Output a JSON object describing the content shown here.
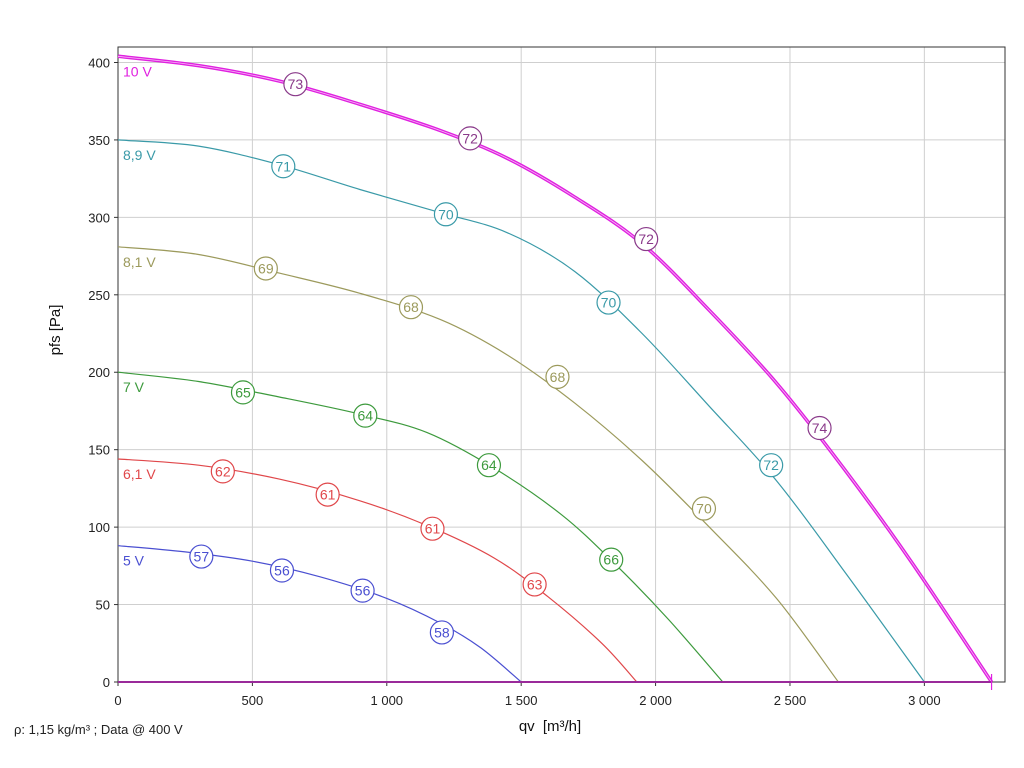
{
  "chart_data": {
    "type": "line",
    "xlabel": "qv",
    "xlabel_unit": "[m³/h]",
    "ylabel": "pfs [Pa]",
    "xlim": [
      0,
      3300
    ],
    "ylim": [
      0,
      410
    ],
    "x_ticks": [
      0,
      500,
      1000,
      1500,
      2000,
      2500,
      3000
    ],
    "x_tick_labels": [
      "0",
      "500",
      "1 000",
      "1 500",
      "2 000",
      "2 500",
      "3 000"
    ],
    "y_ticks": [
      0,
      50,
      100,
      150,
      200,
      250,
      300,
      350,
      400
    ],
    "y_tick_labels": [
      "0",
      "50",
      "100",
      "150",
      "200",
      "250",
      "300",
      "350",
      "400"
    ],
    "grid": true,
    "series": [
      {
        "name": "5 V",
        "color": "#4a4fd1",
        "points": [
          [
            0,
            88
          ],
          [
            250,
            84
          ],
          [
            500,
            78
          ],
          [
            750,
            68
          ],
          [
            1000,
            54
          ],
          [
            1200,
            38
          ],
          [
            1350,
            22
          ],
          [
            1500,
            0
          ]
        ],
        "markers": [
          {
            "x": 310,
            "y": 81,
            "label": "57"
          },
          {
            "x": 610,
            "y": 72,
            "label": "56"
          },
          {
            "x": 910,
            "y": 59,
            "label": "56"
          },
          {
            "x": 1205,
            "y": 32,
            "label": "58"
          }
        ]
      },
      {
        "name": "6,1 V",
        "color": "#e0474a",
        "points": [
          [
            0,
            144
          ],
          [
            300,
            140
          ],
          [
            600,
            131
          ],
          [
            900,
            117
          ],
          [
            1150,
            101
          ],
          [
            1400,
            80
          ],
          [
            1600,
            55
          ],
          [
            1800,
            25
          ],
          [
            1930,
            0
          ]
        ],
        "markers": [
          {
            "x": 390,
            "y": 136,
            "label": "62"
          },
          {
            "x": 780,
            "y": 121,
            "label": "61"
          },
          {
            "x": 1170,
            "y": 99,
            "label": "61"
          },
          {
            "x": 1550,
            "y": 63,
            "label": "63"
          }
        ]
      },
      {
        "name": "7 V",
        "color": "#3d9a3d",
        "points": [
          [
            0,
            200
          ],
          [
            300,
            194
          ],
          [
            600,
            184
          ],
          [
            900,
            173
          ],
          [
            1150,
            161
          ],
          [
            1400,
            138
          ],
          [
            1650,
            108
          ],
          [
            1850,
            76
          ],
          [
            2050,
            40
          ],
          [
            2250,
            0
          ]
        ],
        "markers": [
          {
            "x": 465,
            "y": 187,
            "label": "65"
          },
          {
            "x": 920,
            "y": 172,
            "label": "64"
          },
          {
            "x": 1380,
            "y": 140,
            "label": "64"
          },
          {
            "x": 1835,
            "y": 79,
            "label": "66"
          }
        ]
      },
      {
        "name": "8,1 V",
        "color": "#9c9a5c",
        "points": [
          [
            0,
            281
          ],
          [
            300,
            276
          ],
          [
            600,
            264
          ],
          [
            900,
            251
          ],
          [
            1200,
            234
          ],
          [
            1450,
            211
          ],
          [
            1700,
            180
          ],
          [
            1950,
            143
          ],
          [
            2200,
            100
          ],
          [
            2450,
            54
          ],
          [
            2680,
            0
          ]
        ],
        "markers": [
          {
            "x": 550,
            "y": 267,
            "label": "69"
          },
          {
            "x": 1090,
            "y": 242,
            "label": "68"
          },
          {
            "x": 1635,
            "y": 197,
            "label": "68"
          },
          {
            "x": 2180,
            "y": 112,
            "label": "70"
          }
        ]
      },
      {
        "name": "8,9 V",
        "color": "#3a9aa8",
        "points": [
          [
            0,
            350
          ],
          [
            300,
            346
          ],
          [
            600,
            334
          ],
          [
            900,
            318
          ],
          [
            1200,
            303
          ],
          [
            1450,
            290
          ],
          [
            1700,
            265
          ],
          [
            1950,
            225
          ],
          [
            2200,
            178
          ],
          [
            2450,
            130
          ],
          [
            2700,
            72
          ],
          [
            3000,
            0
          ]
        ],
        "markers": [
          {
            "x": 615,
            "y": 333,
            "label": "71"
          },
          {
            "x": 1220,
            "y": 302,
            "label": "70"
          },
          {
            "x": 1825,
            "y": 245,
            "label": "70"
          },
          {
            "x": 2430,
            "y": 140,
            "label": "72"
          }
        ]
      },
      {
        "name": "10 V",
        "color": "#e020e0",
        "points": [
          [
            0,
            404
          ],
          [
            300,
            398
          ],
          [
            600,
            388
          ],
          [
            900,
            373
          ],
          [
            1200,
            356
          ],
          [
            1450,
            338
          ],
          [
            1700,
            313
          ],
          [
            1950,
            283
          ],
          [
            2200,
            240
          ],
          [
            2450,
            193
          ],
          [
            2700,
            138
          ],
          [
            2950,
            78
          ],
          [
            3250,
            0
          ]
        ],
        "markers": [
          {
            "x": 660,
            "y": 386,
            "label": "73"
          },
          {
            "x": 1310,
            "y": 351,
            "label": "72"
          },
          {
            "x": 1965,
            "y": 286,
            "label": "72"
          },
          {
            "x": 2610,
            "y": 164,
            "label": "74"
          }
        ]
      }
    ],
    "marker_color": "#8a3a8a"
  },
  "footnote": "ρ: 1,15 kg/m³ ; Data @ 400 V"
}
